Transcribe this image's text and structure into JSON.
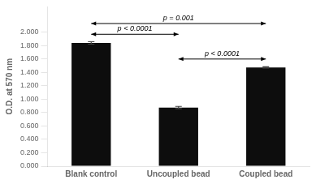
{
  "chart_data": {
    "type": "bar",
    "categories": [
      "Blank control",
      "Uncoupled bead",
      "Coupled bead"
    ],
    "values": [
      1.84,
      0.875,
      1.475
    ],
    "errors": [
      0.018,
      0.018,
      0.01
    ],
    "color": "#0d0d0d",
    "ylabel": "O.D. at 570 nm",
    "ylim": [
      0.0,
      2.38
    ],
    "yticks": [
      {
        "value": 0.0,
        "label": "0.000"
      },
      {
        "value": 0.2,
        "label": "0.200"
      },
      {
        "value": 0.4,
        "label": "0.400"
      },
      {
        "value": 0.6,
        "label": "0.600"
      },
      {
        "value": 0.8,
        "label": "0.800"
      },
      {
        "value": 1.0,
        "label": "1.000"
      },
      {
        "value": 1.2,
        "label": "1.200"
      },
      {
        "value": 1.4,
        "label": "1.400"
      },
      {
        "value": 1.6,
        "label": "1.600"
      },
      {
        "value": 1.8,
        "label": "1.800"
      },
      {
        "value": 2.0,
        "label": "2.000"
      }
    ],
    "annotations": [
      {
        "from": "Blank control",
        "to": "Uncoupled bead",
        "y": 1.97,
        "text": "p < 0.0001"
      },
      {
        "from": "Blank control",
        "to": "Coupled bead",
        "y": 2.13,
        "text": "p = 0.001"
      },
      {
        "from": "Uncoupled bead",
        "to": "Coupled bead",
        "y": 1.6,
        "text": "p < 0.0001"
      }
    ],
    "grid": false,
    "legend": false
  }
}
